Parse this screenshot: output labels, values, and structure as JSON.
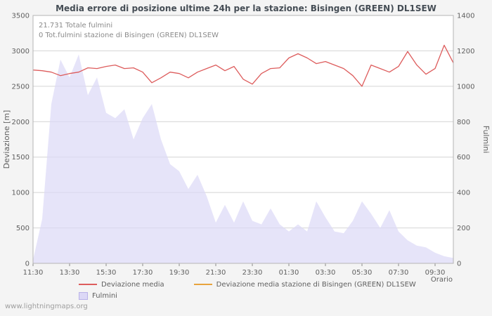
{
  "watermark": "www.lightningmaps.org",
  "chart_data": {
    "type": "line+area",
    "title": "Media errore di posizione ultime 24h per la stazione: Bisingen (GREEN) DL1SEW",
    "annotations": [
      "21.731 Totale fulmini",
      "0 Tot.fulmini stazione di Bisingen (GREEN) DL1SEW"
    ],
    "xlabel": "Orario",
    "ylabel_left": "Deviazione  [m]",
    "ylabel_right": "Fulmini",
    "x_tick_labels": [
      "11:30",
      "13:30",
      "15:30",
      "17:30",
      "19:30",
      "21:30",
      "23:30",
      "01:30",
      "03:30",
      "05:30",
      "07:30",
      "09:30"
    ],
    "x_tick_interval_minutes": 120,
    "x_step_minutes": 30,
    "x_total_minutes": 1380,
    "left_axis": {
      "min": 0,
      "max": 3500,
      "step": 500
    },
    "right_axis": {
      "min": 0,
      "max": 1400,
      "step": 200
    },
    "grid": true,
    "legend_position": "bottom",
    "colors": {
      "grid": "#d4d4d4",
      "border": "#b5b5b5",
      "plot_background": "#ffffff"
    },
    "series": [
      {
        "name": "Deviazione media",
        "type": "line",
        "axis": "left",
        "color": "#dd5c5c",
        "values": [
          2730,
          2720,
          2700,
          2650,
          2680,
          2700,
          2760,
          2750,
          2780,
          2800,
          2750,
          2760,
          2700,
          2550,
          2620,
          2700,
          2680,
          2620,
          2700,
          2750,
          2800,
          2720,
          2780,
          2600,
          2530,
          2680,
          2750,
          2760,
          2900,
          2960,
          2900,
          2820,
          2850,
          2800,
          2750,
          2650,
          2500,
          2800,
          2750,
          2700,
          2780,
          2990,
          2800,
          2670,
          2750,
          3080,
          2830
        ]
      },
      {
        "name": "Deviazione media stazione di Bisingen (GREEN) DL1SEW",
        "type": "line",
        "axis": "left",
        "color": "#e8a33d",
        "values": []
      },
      {
        "name": "Fulmini",
        "type": "area",
        "axis": "right",
        "color": "#dcd8f6",
        "values": [
          20,
          250,
          900,
          1150,
          1050,
          1180,
          950,
          1050,
          850,
          820,
          870,
          700,
          820,
          900,
          700,
          560,
          520,
          420,
          500,
          380,
          230,
          330,
          230,
          350,
          240,
          220,
          310,
          220,
          180,
          220,
          180,
          350,
          260,
          180,
          170,
          240,
          350,
          280,
          200,
          300,
          180,
          130,
          100,
          90,
          60,
          40,
          30
        ]
      }
    ]
  }
}
